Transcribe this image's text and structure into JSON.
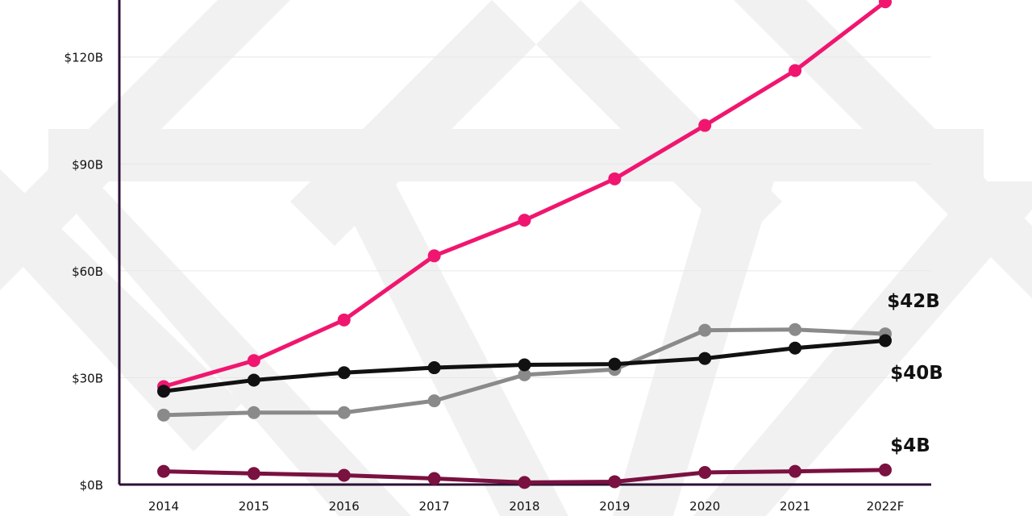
{
  "chart_data": {
    "type": "line",
    "categories": [
      "2014",
      "2015",
      "2016",
      "2017",
      "2018",
      "2019",
      "2020",
      "2021",
      "2022F"
    ],
    "y_ticks": [
      0,
      30,
      60,
      90,
      120
    ],
    "y_tick_labels": [
      "$0B",
      "$30B",
      "$60B",
      "$90B",
      "$120B"
    ],
    "ylim": [
      0,
      136
    ],
    "grid": true,
    "series": [
      {
        "key": "pink",
        "color": "#f0166f",
        "values": [
          27.5,
          34.8,
          46.2,
          64.2,
          74.2,
          85.8,
          100.8,
          116.2,
          135.5
        ],
        "end_label": ""
      },
      {
        "key": "gray",
        "color": "#8a8a8a",
        "values": [
          19.5,
          20.2,
          20.2,
          23.5,
          30.8,
          32.3,
          43.3,
          43.5,
          42.3
        ],
        "end_label": "$42B"
      },
      {
        "key": "black",
        "color": "#111111",
        "values": [
          26.2,
          29.3,
          31.4,
          32.8,
          33.6,
          33.8,
          35.4,
          38.3,
          40.4
        ],
        "end_label": "$40B"
      },
      {
        "key": "maroon",
        "color": "#7a1140",
        "values": [
          3.7,
          3.1,
          2.6,
          1.7,
          0.6,
          0.8,
          3.4,
          3.7,
          4.1
        ],
        "end_label": "$4B"
      }
    ]
  }
}
